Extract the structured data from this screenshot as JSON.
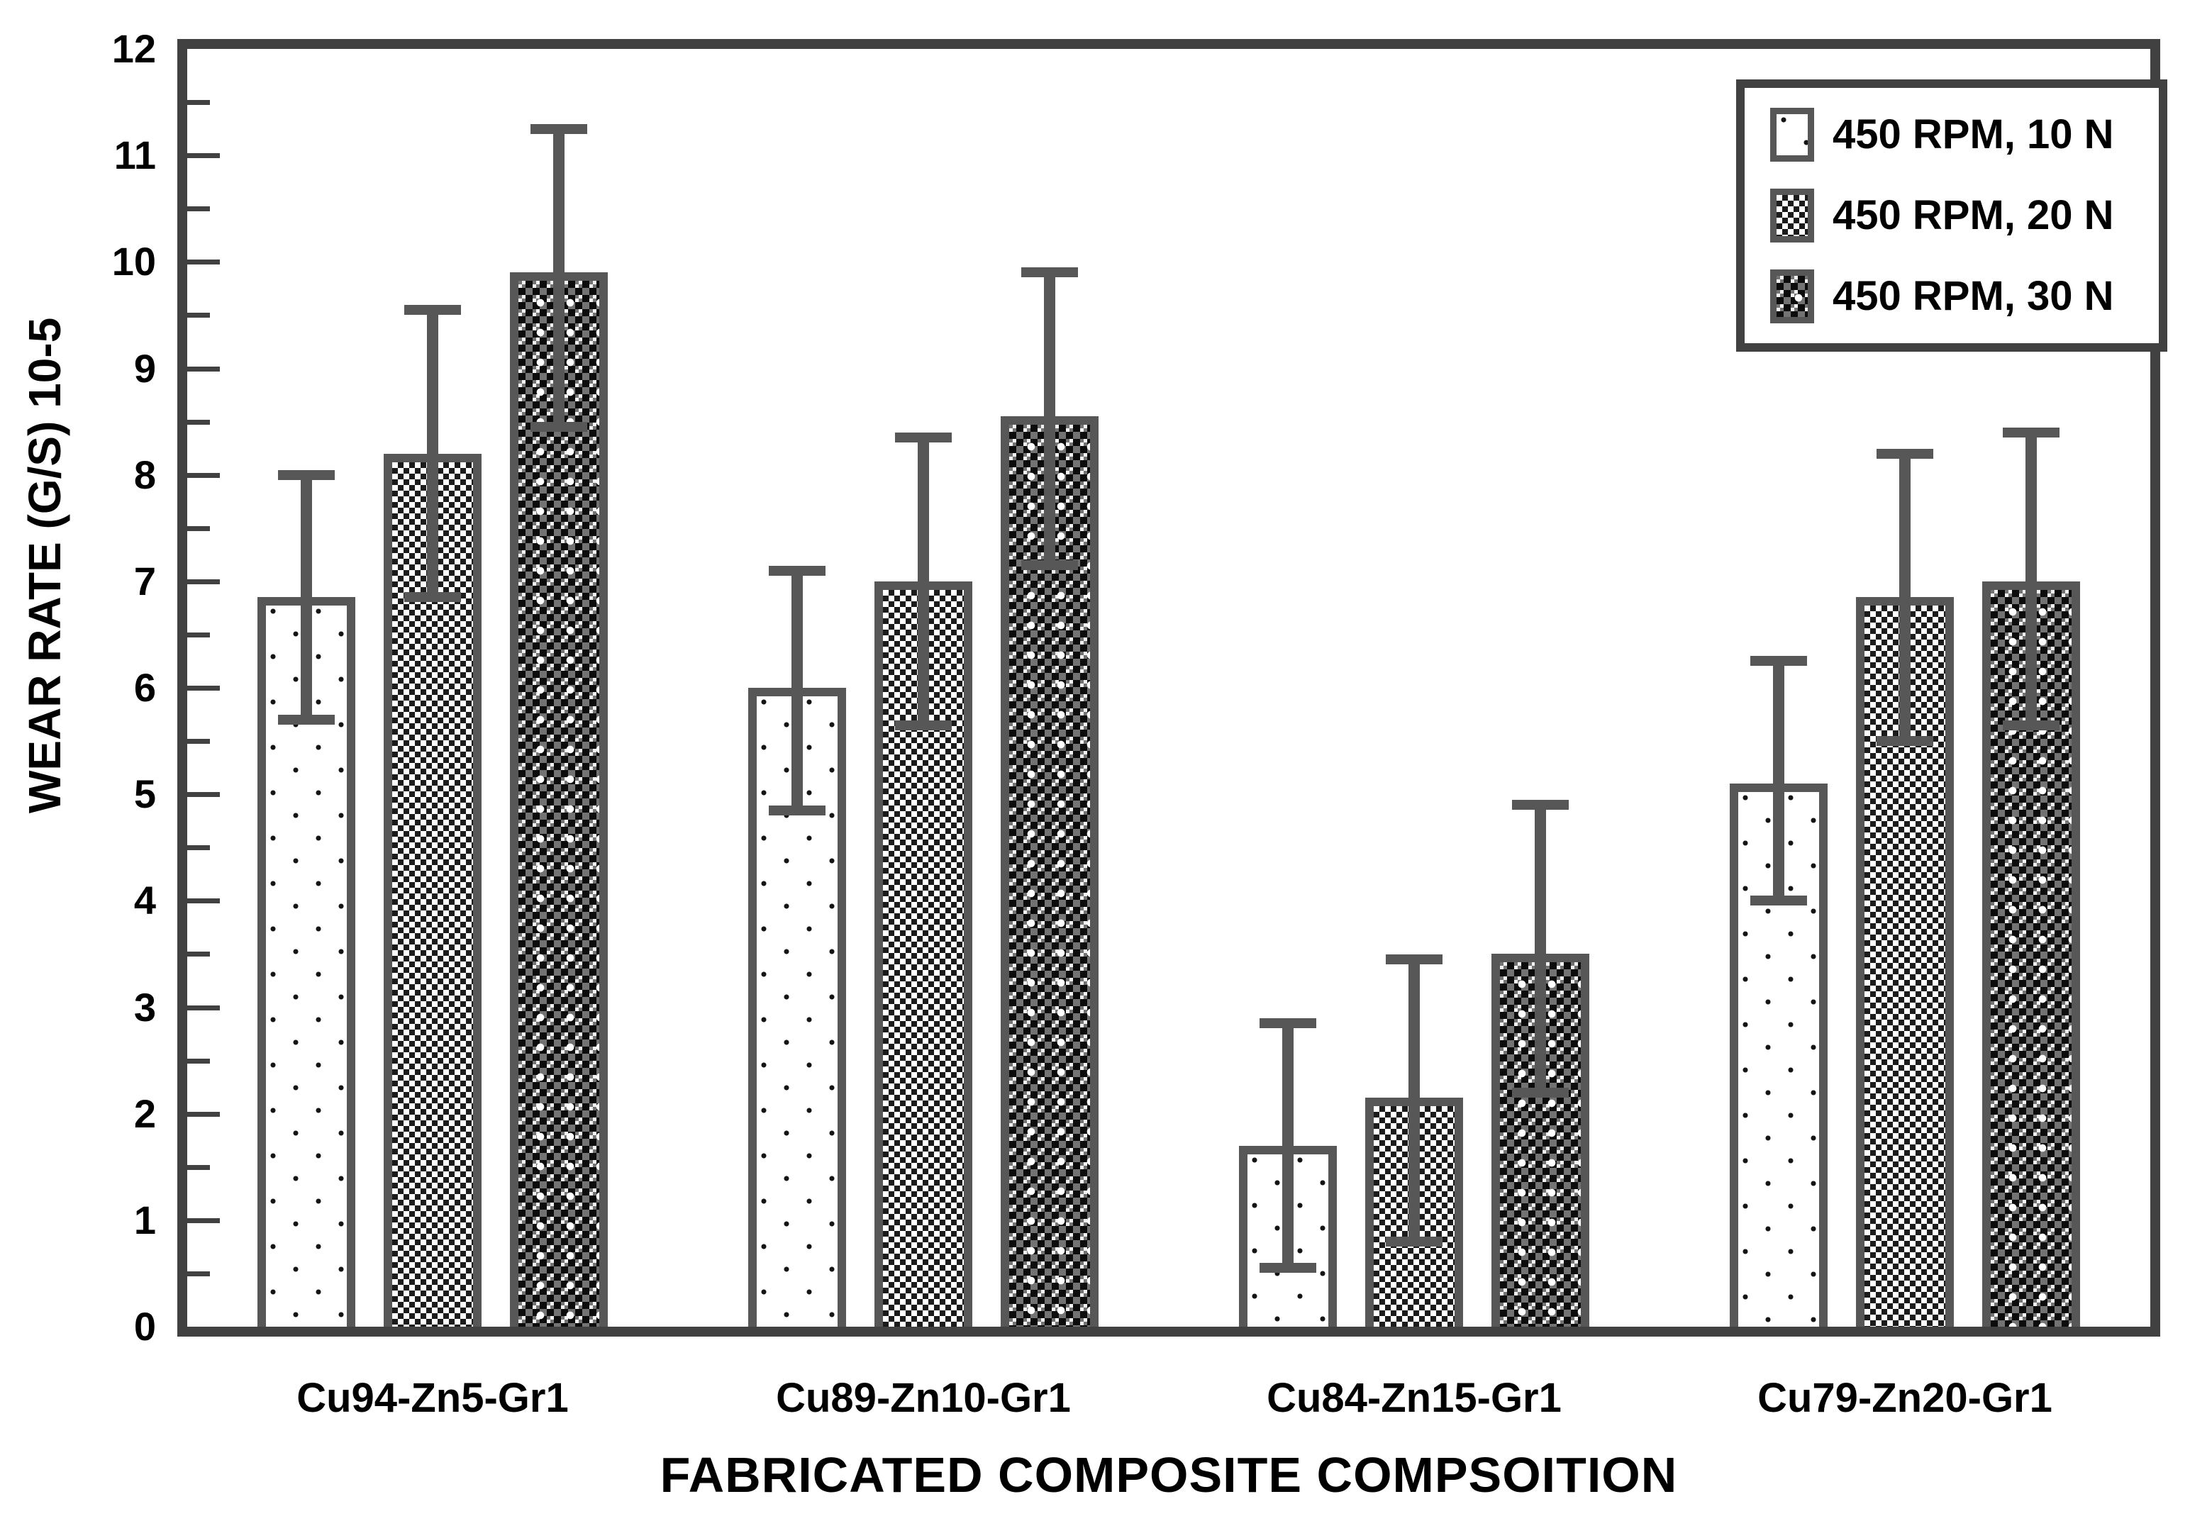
{
  "figure": {
    "background": "#ffffff",
    "axis_color": "#414141",
    "bar_border_color": "#575757",
    "error_bar_color": "#575757",
    "text_color": "#000000"
  },
  "chart_data": {
    "type": "bar",
    "title": "",
    "xlabel": "FABRICATED COMPOSITE COMPSOITION",
    "ylabel": "WEAR RATE (G/S) 10-5",
    "ylim": [
      0,
      12
    ],
    "ytick_step": 1,
    "minor_tick_step": 0.5,
    "grid": false,
    "legend_position": "top-right",
    "categories": [
      "Cu94-Zn5-Gr1",
      "Cu89-Zn10-Gr1",
      "Cu84-Zn15-Gr1",
      "Cu79-Zn20-Gr1"
    ],
    "series": [
      {
        "name": "450 RPM, 10 N",
        "pattern": "sparse-dots",
        "values": [
          6.85,
          6.0,
          1.7,
          5.1
        ],
        "error_low": [
          5.7,
          4.85,
          0.55,
          4.0
        ],
        "error_high": [
          8.0,
          7.1,
          2.85,
          6.25
        ]
      },
      {
        "name": "450 RPM, 20 N",
        "pattern": "dense-dots",
        "values": [
          8.2,
          7.0,
          2.15,
          6.85
        ],
        "error_low": [
          6.85,
          5.65,
          0.8,
          5.5
        ],
        "error_high": [
          9.55,
          8.35,
          3.45,
          8.2
        ]
      },
      {
        "name": "450 RPM, 30 N",
        "pattern": "dark-checker",
        "values": [
          9.9,
          8.55,
          3.5,
          7.0
        ],
        "error_low": [
          8.45,
          7.15,
          2.2,
          5.65
        ],
        "error_high": [
          11.25,
          9.9,
          4.9,
          8.4
        ]
      }
    ],
    "ytick_labels": [
      "0",
      "1",
      "2",
      "3",
      "4",
      "5",
      "6",
      "7",
      "8",
      "9",
      "10",
      "11",
      "12"
    ]
  }
}
